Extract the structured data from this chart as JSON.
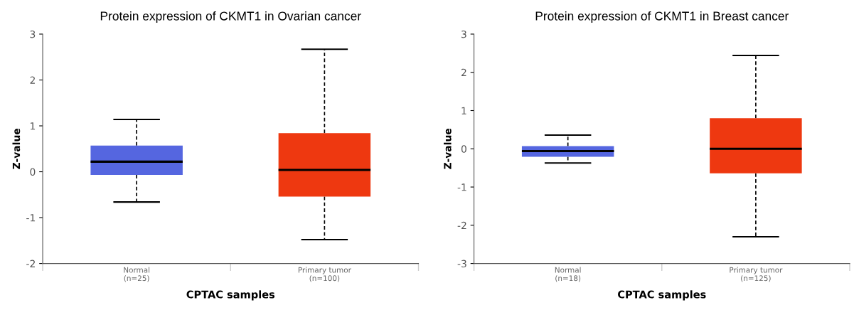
{
  "chart_data": [
    {
      "type": "box",
      "title": "Protein expression of CKMT1 in Ovarian cancer",
      "xlabel": "CPTAC samples",
      "ylabel": "Z-value",
      "categories": [
        "Normal\n(n=25)",
        "Primary tumor\n(n=100)"
      ],
      "colors": [
        "#5566e0",
        "#ee3810"
      ],
      "boxes": [
        {
          "low": -0.66,
          "q1": -0.07,
          "median": 0.22,
          "q3": 0.57,
          "high": 1.14
        },
        {
          "low": -1.48,
          "q1": -0.54,
          "median": 0.04,
          "q3": 0.84,
          "high": 2.67
        }
      ],
      "ylim": [
        -2,
        3
      ],
      "yticks": [
        -2,
        -1,
        0,
        1,
        2,
        3
      ],
      "grid": false,
      "legend": false
    },
    {
      "type": "box",
      "title": "Protein expression of CKMT1 in Breast cancer",
      "xlabel": "CPTAC samples",
      "ylabel": "Z-value",
      "categories": [
        "Normal\n(n=18)",
        "Primary tumor\n(n=125)"
      ],
      "colors": [
        "#5566e0",
        "#ee3810"
      ],
      "boxes": [
        {
          "low": -0.37,
          "q1": -0.21,
          "median": -0.06,
          "q3": 0.07,
          "high": 0.36
        },
        {
          "low": -2.3,
          "q1": -0.64,
          "median": 0.0,
          "q3": 0.8,
          "high": 2.44
        }
      ],
      "ylim": [
        -3,
        3
      ],
      "yticks": [
        -3,
        -2,
        -1,
        0,
        1,
        2,
        3
      ],
      "grid": false,
      "legend": false
    }
  ]
}
